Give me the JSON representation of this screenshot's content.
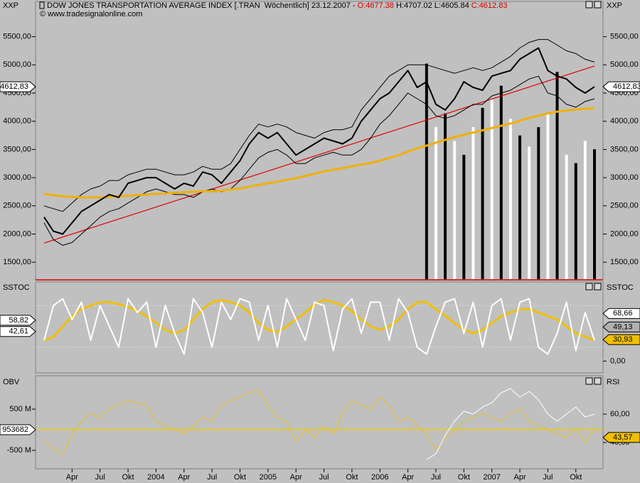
{
  "chart_data": [
    {
      "type": "line",
      "symbol": "XXP",
      "title": "DOW JONES TRANSPORTATION AVERAGE INDEX [.TRAN  Wöchentlich] 23.12.2007 -",
      "ohlc": [
        "O:4677.38",
        "H:4707.02",
        "L:4605.84",
        "C:4612.83"
      ],
      "subtitle": "© www.tradesignalonline.com",
      "categories": [
        null,
        null,
        null,
        "Apr",
        null,
        null,
        "Jul",
        null,
        null,
        "Okt",
        null,
        null,
        "2004",
        null,
        null,
        "Apr",
        null,
        null,
        "Jul",
        null,
        null,
        "Okt",
        null,
        null,
        "2005",
        null,
        null,
        "Apr",
        null,
        null,
        "Jul",
        null,
        null,
        "Okt",
        null,
        null,
        "2006",
        null,
        null,
        "Apr",
        null,
        null,
        "Jul",
        null,
        null,
        "Okt",
        null,
        null,
        "2007",
        null,
        null,
        "Apr",
        null,
        null,
        "Jul",
        null,
        null,
        "Okt",
        null,
        null
      ],
      "ylim": [
        1200,
        6100
      ],
      "ytick_side": "both",
      "yticks": [
        {
          "value": 1500,
          "label": "1500,00"
        },
        {
          "value": 2000,
          "label": "2000,00"
        },
        {
          "value": 2500,
          "label": "2500,00"
        },
        {
          "value": 3000,
          "label": "3000,00"
        },
        {
          "value": 3500,
          "label": "3500,00"
        },
        {
          "value": 4000,
          "label": "4000,00"
        },
        {
          "value": 4500,
          "label": "4500,00"
        },
        {
          "value": 5000,
          "label": "5000,00"
        },
        {
          "value": 5500,
          "label": "5500,00"
        }
      ],
      "series": [
        {
          "color": "#000000",
          "width": 1,
          "values": [
            2500,
            2450,
            2400,
            2550,
            2700,
            2800,
            2850,
            2950,
            2950,
            3050,
            3100,
            3150,
            3150,
            3100,
            3050,
            3050,
            3100,
            3200,
            3150,
            3150,
            3250,
            3500,
            3750,
            3950,
            3900,
            3950,
            3900,
            3800,
            3750,
            3700,
            3800,
            3850,
            3850,
            3900,
            4200,
            4400,
            4600,
            4800,
            4900,
            5000,
            5000,
            5000,
            4950,
            4900,
            4850,
            4900,
            4950,
            4900,
            4950,
            5050,
            5150,
            5300,
            5400,
            5450,
            5450,
            5350,
            5250,
            5200,
            5100,
            5050
          ]
        },
        {
          "color": "#000000",
          "width": 1,
          "values": [
            2200,
            1900,
            1800,
            1850,
            2000,
            2150,
            2300,
            2400,
            2450,
            2550,
            2650,
            2750,
            2800,
            2750,
            2700,
            2700,
            2650,
            2750,
            2800,
            2750,
            2800,
            2950,
            3150,
            3350,
            3450,
            3500,
            3400,
            3250,
            3250,
            3350,
            3400,
            3450,
            3400,
            3400,
            3500,
            3700,
            3950,
            4100,
            4300,
            4500,
            4400,
            4300,
            4100,
            4050,
            4100,
            4200,
            4300,
            4300,
            4450,
            4500,
            4550,
            4650,
            4750,
            4800,
            4500,
            4450,
            4300,
            4250,
            4350,
            4400
          ]
        },
        {
          "color": "#f0b000",
          "width": 3,
          "values": [
            2710,
            2690,
            2670,
            2660,
            2650,
            2650,
            2650,
            2660,
            2670,
            2680,
            2690,
            2700,
            2710,
            2720,
            2730,
            2740,
            2750,
            2760,
            2760,
            2770,
            2790,
            2810,
            2840,
            2870,
            2900,
            2930,
            2960,
            2990,
            3030,
            3070,
            3110,
            3140,
            3170,
            3200,
            3230,
            3260,
            3300,
            3350,
            3400,
            3460,
            3520,
            3570,
            3620,
            3670,
            3720,
            3760,
            3800,
            3840,
            3880,
            3920,
            3960,
            4010,
            4060,
            4100,
            4140,
            4170,
            4190,
            4210,
            4220,
            4230
          ]
        },
        {
          "color": "#000000",
          "width": 2,
          "values": [
            2300,
            2050,
            2000,
            2200,
            2400,
            2500,
            2600,
            2700,
            2650,
            2900,
            2950,
            3000,
            3000,
            2900,
            2800,
            2900,
            2850,
            3100,
            3050,
            2900,
            3100,
            3300,
            3600,
            3800,
            3700,
            3800,
            3600,
            3400,
            3500,
            3600,
            3700,
            3650,
            3600,
            3700,
            4000,
            4200,
            4400,
            4500,
            4700,
            4900,
            4600,
            4700,
            4300,
            4200,
            4400,
            4700,
            4600,
            4550,
            4800,
            4850,
            4900,
            5100,
            5200,
            5300,
            4900,
            4800,
            4750,
            4600,
            4500,
            4612.83
          ]
        }
      ],
      "trendline": {
        "color": "#e00000",
        "from": 1840,
        "to": 4980
      },
      "volume": {
        "color": "#000000",
        "ylim": [
          0,
          100
        ],
        "values": [
          null,
          null,
          null,
          null,
          null,
          null,
          null,
          null,
          null,
          null,
          null,
          null,
          null,
          null,
          null,
          null,
          null,
          null,
          null,
          null,
          null,
          null,
          null,
          null,
          null,
          null,
          null,
          null,
          null,
          null,
          null,
          null,
          null,
          null,
          null,
          null,
          null,
          null,
          null,
          null,
          null,
          78,
          55,
          60,
          50,
          45,
          55,
          62,
          65,
          70,
          58,
          52,
          48,
          55,
          60,
          75,
          45,
          42,
          50,
          47
        ]
      },
      "markers": [
        {
          "value": 4612.83,
          "label": "4612,83",
          "side": "left",
          "color": "#ffffff"
        },
        {
          "value": 4612.83,
          "label": "4612,83",
          "side": "right",
          "color": "#ffffff"
        }
      ]
    },
    {
      "type": "line",
      "name": "SSTOC",
      "ylim": [
        -17,
        113
      ],
      "ytick_side": "right",
      "yticks": [
        {
          "value": 0,
          "label": "0,00"
        }
      ],
      "levels": [
        20,
        80
      ],
      "series": [
        {
          "color": "#f0c000",
          "width": 3,
          "values": [
            30,
            35,
            50,
            65,
            75,
            80,
            85,
            85,
            82,
            78,
            72,
            65,
            55,
            45,
            40,
            45,
            60,
            75,
            85,
            88,
            85,
            80,
            70,
            55,
            45,
            42,
            50,
            60,
            70,
            82,
            88,
            85,
            80,
            72,
            60,
            50,
            45,
            50,
            60,
            75,
            85,
            85,
            75,
            65,
            55,
            45,
            40,
            45,
            55,
            65,
            70,
            75,
            75,
            70,
            65,
            60,
            50,
            40,
            35,
            30
          ]
        },
        {
          "color": "#ffffff",
          "width": 2,
          "values": [
            30,
            80,
            90,
            60,
            85,
            30,
            80,
            50,
            20,
            90,
            70,
            85,
            20,
            80,
            40,
            10,
            90,
            70,
            20,
            85,
            60,
            90,
            85,
            30,
            80,
            20,
            90,
            60,
            30,
            85,
            80,
            15,
            75,
            90,
            40,
            85,
            85,
            30,
            90,
            70,
            20,
            10,
            50,
            85,
            90,
            40,
            85,
            20,
            80,
            90,
            30,
            85,
            90,
            20,
            10,
            40,
            85,
            15,
            70,
            30
          ]
        }
      ],
      "markers": [
        {
          "value": 58.82,
          "label": "58,82",
          "side": "left",
          "color": "#ffffff"
        },
        {
          "value": 42.61,
          "label": "42,61",
          "side": "left",
          "color": "#ffffff"
        },
        {
          "value": 68.66,
          "label": "68,66",
          "side": "right",
          "color": "#ffffff"
        },
        {
          "value": 49.13,
          "label": "49,13",
          "side": "right",
          "color": "#b0b0b0"
        },
        {
          "value": 30.93,
          "label": "30,93",
          "side": "right",
          "color": "#f0c000"
        }
      ]
    },
    {
      "type": "line",
      "ylim": [
        -948000000,
        1293000000
      ],
      "ytick_side": "left",
      "yticks": [
        {
          "value": 500000000,
          "label": "500 M"
        },
        {
          "value": 0,
          "label": "0 M"
        },
        {
          "value": -500000000,
          "label": "-500 M"
        }
      ],
      "y2lim": [
        21.5,
        86.5
      ],
      "y2ticks": [
        {
          "value": 60,
          "label": "60,00"
        },
        {
          "value": 40,
          "label": "40,00"
        }
      ],
      "series": [
        {
          "name": "OBV",
          "color": "#e8c020",
          "width": 1,
          "values": [
            -260000000,
            -450000000,
            -600000000,
            -100000000,
            200000000,
            400000000,
            300000000,
            500000000,
            600000000,
            700000000,
            650000000,
            600000000,
            200000000,
            100000000,
            0,
            -100000000,
            100000000,
            300000000,
            200000000,
            600000000,
            700000000,
            800000000,
            900000000,
            950000000,
            600000000,
            300000000,
            200000000,
            -300000000,
            0,
            -200000000,
            100000000,
            -100000000,
            400000000,
            700000000,
            600000000,
            500000000,
            800000000,
            600000000,
            200000000,
            300000000,
            100000000,
            -100000000,
            -500000000,
            -200000000,
            0,
            200000000,
            300000000,
            400000000,
            300000000,
            200000000,
            400000000,
            500000000,
            200000000,
            100000000,
            0,
            -100000000,
            -200000000,
            0,
            -300000000,
            0
          ]
        },
        {
          "name": "RSI",
          "axis": "y2",
          "color": "#ffffff",
          "width": 1,
          "values": [
            null,
            null,
            null,
            null,
            null,
            null,
            null,
            null,
            null,
            null,
            null,
            null,
            null,
            null,
            null,
            null,
            null,
            null,
            null,
            null,
            null,
            null,
            null,
            null,
            null,
            null,
            null,
            null,
            null,
            null,
            null,
            null,
            null,
            null,
            null,
            null,
            null,
            null,
            null,
            null,
            null,
            28,
            32,
            45,
            55,
            62,
            60,
            65,
            68,
            75,
            78,
            72,
            76,
            70,
            60,
            55,
            60,
            65,
            58,
            60
          ]
        }
      ],
      "markers": [
        {
          "value": 953682,
          "label": "953682",
          "side": "left",
          "color": "#ffffff"
        },
        {
          "value": 43.57,
          "label": "43,57",
          "side": "right",
          "axis": "y2",
          "color": "#f0c000"
        }
      ]
    }
  ]
}
